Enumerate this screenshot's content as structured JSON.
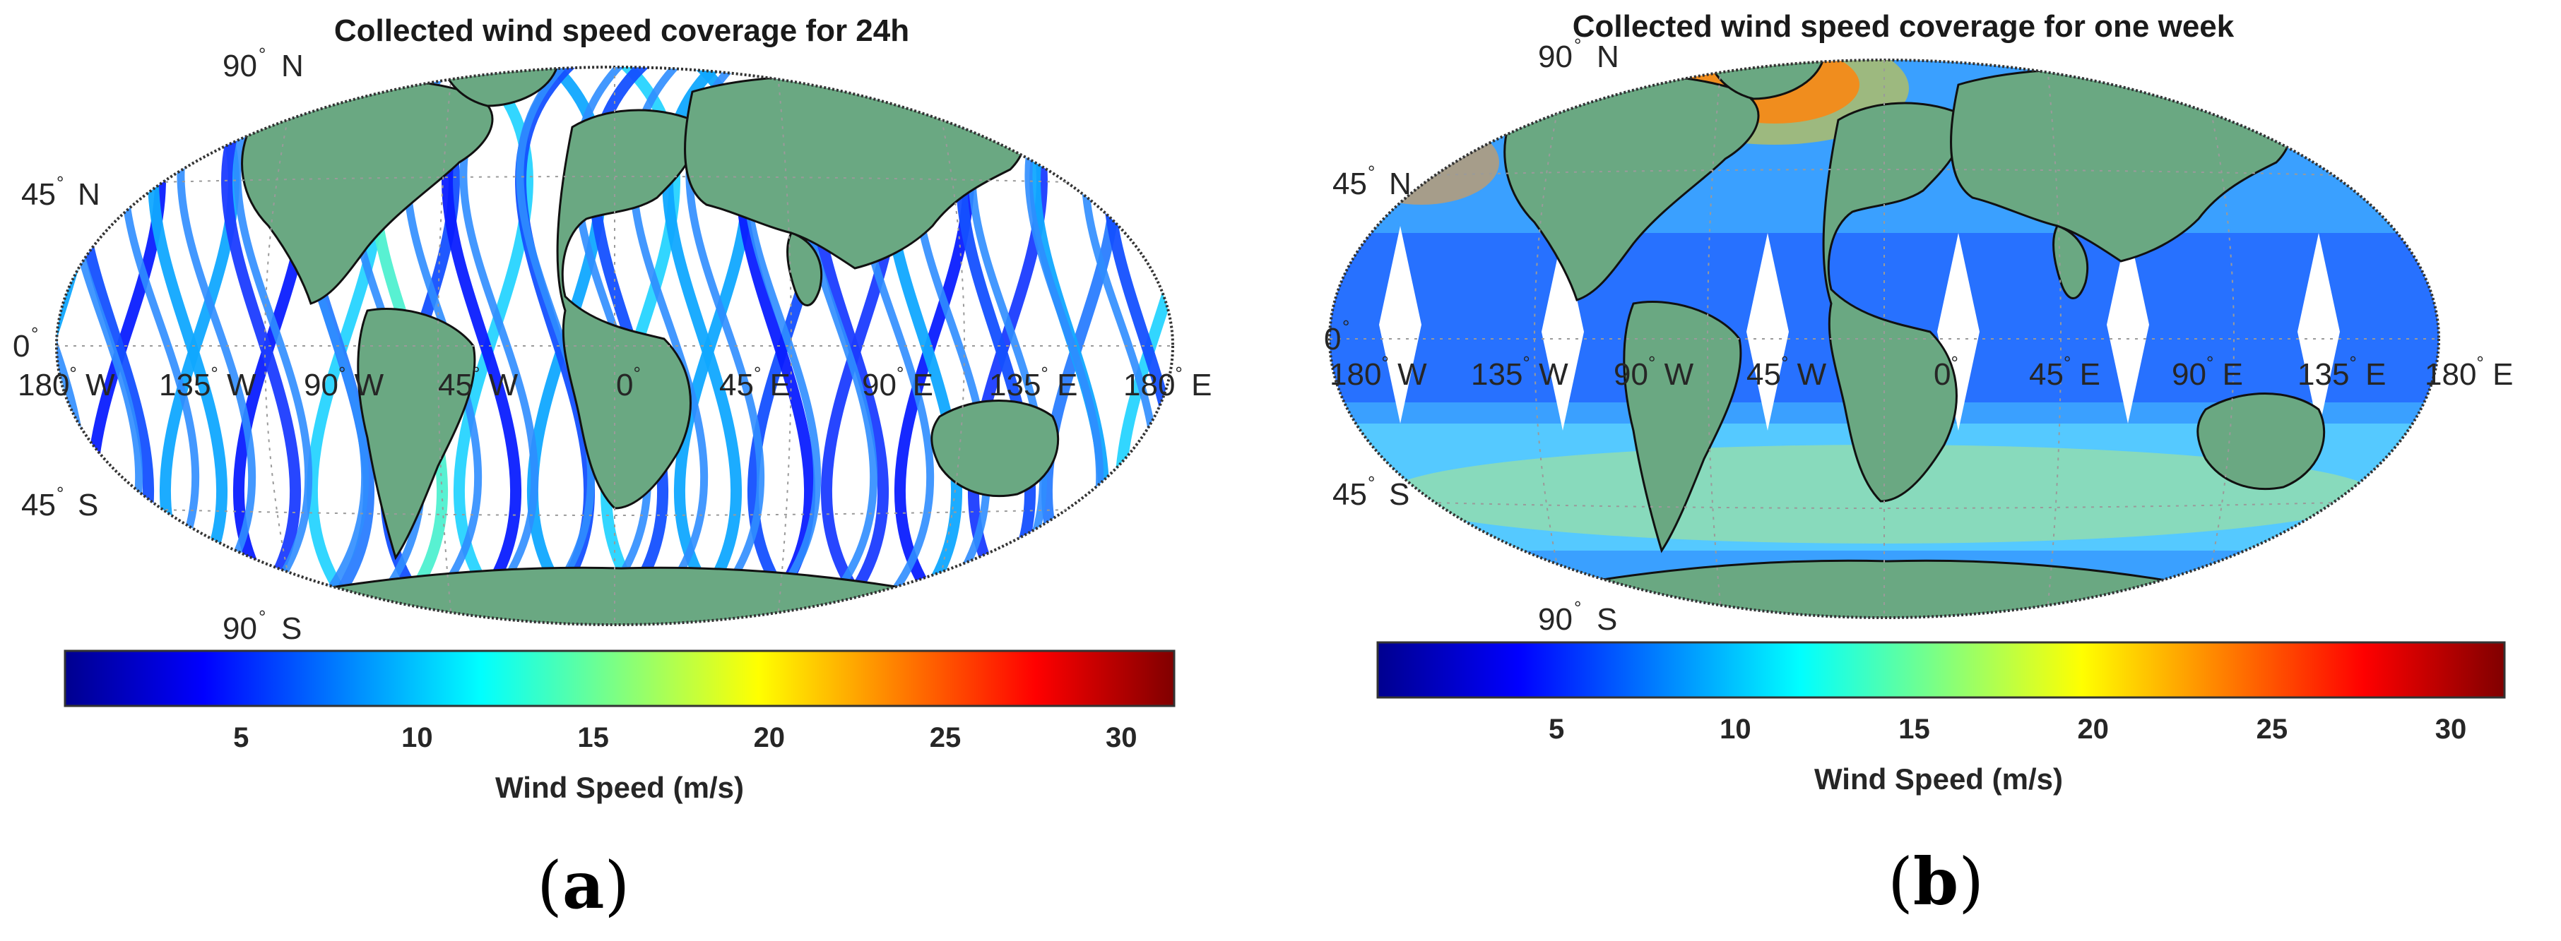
{
  "panels": [
    {
      "id": "a",
      "title": "Collected wind speed coverage for 24h",
      "caption_letter": "a",
      "lat_labels": [
        {
          "deg": "90",
          "dir": "N"
        },
        {
          "deg": "45",
          "dir": "N"
        },
        {
          "deg": "0",
          "dir": ""
        },
        {
          "deg": "45",
          "dir": "S"
        },
        {
          "deg": "90",
          "dir": "S"
        }
      ],
      "lon_labels": [
        {
          "deg": "180",
          "dir": "W"
        },
        {
          "deg": "135",
          "dir": "W"
        },
        {
          "deg": "90",
          "dir": "W"
        },
        {
          "deg": "45",
          "dir": "W"
        },
        {
          "deg": "0",
          "dir": ""
        },
        {
          "deg": "45",
          "dir": "E"
        },
        {
          "deg": "90",
          "dir": "E"
        },
        {
          "deg": "135",
          "dir": "E"
        },
        {
          "deg": "180",
          "dir": "E"
        }
      ],
      "colorbar": {
        "label": "Wind Speed (m/s)",
        "min": 0,
        "max": 31.5,
        "ticks": [
          "5",
          "10",
          "15",
          "20",
          "25",
          "30"
        ]
      }
    },
    {
      "id": "b",
      "title": "Collected wind speed coverage for one week",
      "caption_letter": "b",
      "lat_labels": [
        {
          "deg": "90",
          "dir": "N"
        },
        {
          "deg": "45",
          "dir": "N"
        },
        {
          "deg": "0",
          "dir": ""
        },
        {
          "deg": "45",
          "dir": "S"
        },
        {
          "deg": "90",
          "dir": "S"
        }
      ],
      "lon_labels": [
        {
          "deg": "180",
          "dir": "W"
        },
        {
          "deg": "135",
          "dir": "W"
        },
        {
          "deg": "90",
          "dir": "W"
        },
        {
          "deg": "45",
          "dir": "W"
        },
        {
          "deg": "0",
          "dir": ""
        },
        {
          "deg": "45",
          "dir": "E"
        },
        {
          "deg": "90",
          "dir": "E"
        },
        {
          "deg": "135",
          "dir": "E"
        },
        {
          "deg": "180",
          "dir": "E"
        }
      ],
      "colorbar": {
        "label": "Wind Speed (m/s)",
        "min": 0,
        "max": 31.5,
        "ticks": [
          "5",
          "10",
          "15",
          "20",
          "25",
          "30"
        ]
      }
    }
  ],
  "colors": {
    "land": "#6aa882",
    "coastline": "#111111",
    "colormap": [
      "#00008f",
      "#0000ff",
      "#0080ff",
      "#00ffff",
      "#80ff80",
      "#ffff00",
      "#ff8000",
      "#ff0000",
      "#800000"
    ]
  }
}
